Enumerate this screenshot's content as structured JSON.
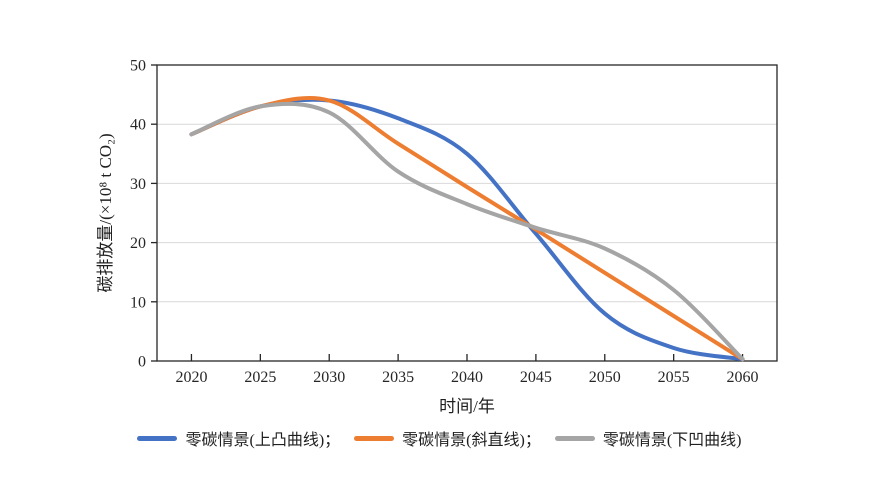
{
  "chart_data": {
    "type": "line",
    "x": [
      2020,
      2025,
      2030,
      2035,
      2040,
      2045,
      2050,
      2055,
      2060
    ],
    "xlabel": "时间/年",
    "ylabel": "碳排放量/(×10⁸ t CO₂)",
    "ylim": [
      0,
      50
    ],
    "yticks": [
      0,
      10,
      20,
      30,
      40,
      50
    ],
    "grid": "horizontal-only",
    "plot_border": true,
    "legend_position": "bottom",
    "series": [
      {
        "name": "零碳情景(上凸曲线)",
        "color": "#4472C4",
        "values": [
          38.3,
          43,
          44,
          41,
          35,
          21.5,
          8,
          2.2,
          0.3
        ]
      },
      {
        "name": "零碳情景(斜直线)",
        "color": "#ED7D31",
        "values": [
          38.3,
          43,
          44,
          36.7,
          29.4,
          22.2,
          14.9,
          7.6,
          0.3
        ]
      },
      {
        "name": "零碳情景(下凹曲线)",
        "color": "#A5A5A5",
        "values": [
          38.3,
          43,
          42,
          32,
          26.5,
          22.5,
          19,
          12,
          0.3
        ]
      }
    ]
  },
  "legend": {
    "items": [
      {
        "label": "零碳情景(上凸曲线)；",
        "color": "#4472C4"
      },
      {
        "label": "零碳情景(斜直线)；",
        "color": "#ED7D31"
      },
      {
        "label": "零碳情景(下凹曲线)",
        "color": "#A5A5A5"
      }
    ]
  },
  "style": {
    "axis_color": "#262626",
    "grid_color": "#d9d9d9",
    "background": "#ffffff",
    "line_width": 4
  }
}
